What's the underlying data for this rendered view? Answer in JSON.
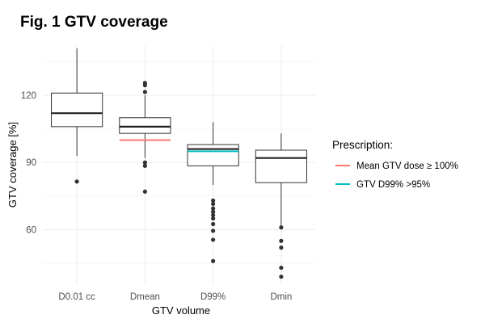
{
  "chart_data": {
    "type": "boxplot",
    "title": "Fig. 1 GTV coverage",
    "xlabel": "GTV volume",
    "ylabel": "GTV coverage [%]",
    "ylim": [
      36,
      142
    ],
    "yticks": [
      60,
      90,
      120
    ],
    "grid": true,
    "legend_position": "right",
    "categories": [
      "D0.01 cc",
      "Dmean",
      "D99%",
      "Dmin"
    ],
    "boxes": [
      {
        "category": "D0.01 cc",
        "whisker_low": 93,
        "q1": 106,
        "median": 112,
        "q3": 121,
        "whisker_high": 141,
        "outliers": [
          81.5
        ]
      },
      {
        "category": "Dmean",
        "whisker_low": 92,
        "q1": 103,
        "median": 106,
        "q3": 110,
        "whisker_high": 120,
        "outliers": [
          125.5,
          124.5,
          121.5,
          90,
          88.5,
          77
        ]
      },
      {
        "category": "D99%",
        "whisker_low": 80,
        "q1": 88.5,
        "median": 96,
        "q3": 98,
        "whisker_high": 108,
        "outliers": [
          73,
          71.5,
          69.5,
          68,
          66.5,
          65,
          62.5,
          59.5,
          55.5,
          46
        ]
      },
      {
        "category": "Dmin",
        "whisker_low": 62,
        "q1": 81,
        "median": 92,
        "q3": 95.5,
        "whisker_high": 103,
        "outliers": [
          61,
          55,
          52,
          43,
          39
        ]
      }
    ],
    "reference_lines": [
      {
        "label": "Mean GTV dose ≥ 100%",
        "color": "#F8766D",
        "category": "Dmean",
        "value": 100
      },
      {
        "label": "GTV D99% >95%",
        "color": "#00BFC4",
        "category": "D99%",
        "value": 95
      }
    ],
    "legend": {
      "title": "Prescription:",
      "entries": [
        {
          "label": "Mean GTV dose ≥ 100%",
          "color": "#F8766D"
        },
        {
          "label": "GTV D99% >95%",
          "color": "#00BFC4"
        }
      ]
    }
  }
}
